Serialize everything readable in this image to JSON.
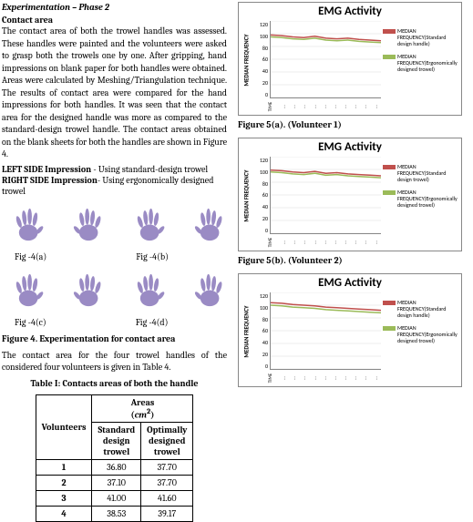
{
  "left": {
    "phase_title": "Experimentation – Phase 2",
    "section_title": "Contact area",
    "body1": "The contact area of both the trowel handles was assessed. These handles were painted and the volunteers were asked to grasp both the trowels one by one. After gripping, hand impressions on blank paper for both handles were obtained. Areas were calculated by Meshing/Triangulation technique. The results of contact area were compared for the hand impressions for both handles. It was seen that the contact area for the designed handle was more as compared to the standard-design trowel handle. The contact areas obtained on the blank sheets for both the handles are shown in Figure 4.",
    "left_side_line": "LEFT SIDE Impression - Using standard-design trowel",
    "right_side_line": "RIGHT SIDE Impression- Using ergonomically designed trowel",
    "hand_labels": [
      "Fig -4(a)",
      "Fig -4(b)",
      "Fig -4(c)",
      "Fig -4(d)"
    ],
    "fig4_title": "Figure 4. Experimentation for contact area",
    "body2": "The contact area for the four trowel handles of the considered four volunteers is given in Table 4.",
    "table_title": "Table I: Contacts areas of both the handle",
    "table": {
      "headers": {
        "vol": "Volunteers",
        "areas": "Areas\n(cm²)",
        "std": "Standard design trowel",
        "opt": "Optimally designed trowel"
      },
      "rows": [
        {
          "v": "1",
          "std": "36.80",
          "opt": "37.70"
        },
        {
          "v": "2",
          "std": "37.10",
          "opt": "37.70"
        },
        {
          "v": "3",
          "std": "41.00",
          "opt": "41.60"
        },
        {
          "v": "4",
          "std": "38.53",
          "opt": "39.17"
        }
      ]
    },
    "hand_color": "#9a8bc4"
  },
  "right": {
    "charts": [
      {
        "title": "EMG Activity",
        "ylabel": "MEDIAN FREQUENCY",
        "yticks": [
          "120",
          "100",
          "80",
          "60",
          "40",
          "20",
          "0"
        ],
        "xticks": [
          "TIME",
          "…",
          "…",
          "…",
          "…",
          "…",
          "…",
          "…",
          "…",
          "…",
          "…"
        ],
        "series1": {
          "color": "#c0504d",
          "label": "MEDIAN FREQUENCY(Standard design handle)",
          "values": [
            98,
            97,
            95,
            94,
            96,
            93,
            92,
            93,
            91,
            90,
            89
          ]
        },
        "series2": {
          "color": "#9bbb59",
          "label": "MEDIAN FREQUENCY(Ergonomically designed trowel)",
          "values": [
            95,
            94,
            92,
            91,
            93,
            90,
            89,
            90,
            88,
            87,
            86
          ]
        },
        "ylim": [
          0,
          120
        ],
        "caption": "Figure 5(a). (Volunteer 1)"
      },
      {
        "title": "EMG Activity",
        "ylabel": "MEDIAN FREQUENCY",
        "yticks": [
          "120",
          "100",
          "80",
          "60",
          "40",
          "20",
          "0"
        ],
        "xticks": [
          "TIME",
          "…",
          "…",
          "…",
          "…",
          "…",
          "…",
          "…",
          "…",
          "…",
          "…"
        ],
        "series1": {
          "color": "#c0504d",
          "label": "MEDIAN FREQUENCY(Standard design trowel)",
          "values": [
            99,
            98,
            96,
            95,
            97,
            94,
            95,
            93,
            92,
            91,
            90
          ]
        },
        "series2": {
          "color": "#9bbb59",
          "label": "MEDIAN FREQUENCY(Ergonomically designed trowel)",
          "values": [
            96,
            95,
            93,
            92,
            94,
            91,
            92,
            90,
            89,
            88,
            87
          ]
        },
        "ylim": [
          0,
          120
        ],
        "caption": "Figure 5(b). (Volunteer 2)"
      },
      {
        "title": "EMG Activity",
        "ylabel": "MEDIAN FREQUENCY",
        "yticks": [
          "120",
          "100",
          "80",
          "60",
          "40",
          "20",
          "0"
        ],
        "xticks": [
          "TIME",
          "…",
          "…",
          "…",
          "…",
          "…",
          "…",
          "…",
          "…",
          "…",
          "…"
        ],
        "series1": {
          "color": "#c0504d",
          "label": "MEDIAN FREQUENCY(Standard design handle)",
          "values": [
            104,
            103,
            101,
            100,
            99,
            97,
            96,
            95,
            94,
            93,
            92
          ]
        },
        "series2": {
          "color": "#9bbb59",
          "label": "MEDIAN FREQUENCY(Ergonomically designed trowel)",
          "values": [
            100,
            99,
            97,
            96,
            95,
            93,
            92,
            91,
            90,
            89,
            88
          ]
        },
        "ylim": [
          0,
          120
        ],
        "caption": ""
      }
    ]
  }
}
